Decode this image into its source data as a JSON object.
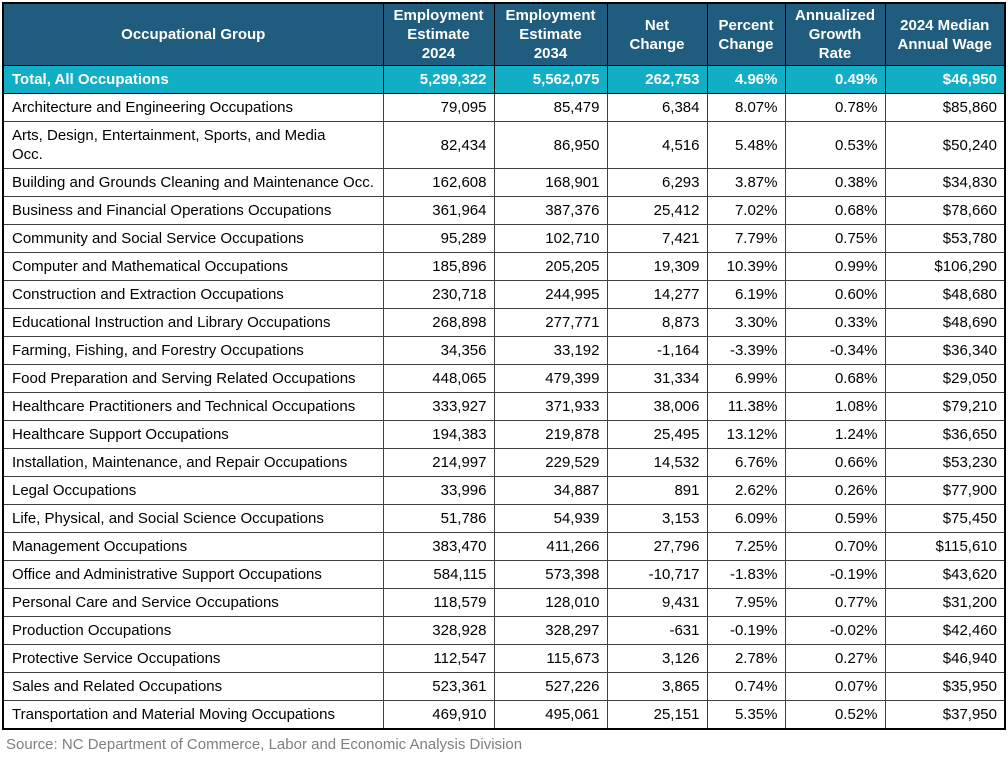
{
  "chart_data": {
    "type": "table",
    "columns": [
      "Occupational Group",
      "Employment\nEstimate\n2024",
      "Employment\nEstimate\n2034",
      "Net\nChange",
      "Percent\nChange",
      "Annualized\nGrowth\nRate",
      "2024 Median\nAnnual Wage"
    ],
    "total_row": {
      "label": "Total, All Occupations",
      "values": [
        "5,299,322",
        "5,562,075",
        "262,753",
        "4.96%",
        "0.49%",
        "$46,950"
      ]
    },
    "rows": [
      {
        "label": "Architecture and Engineering Occupations",
        "values": [
          "79,095",
          "85,479",
          "6,384",
          "8.07%",
          "0.78%",
          "$85,860"
        ]
      },
      {
        "label": "Arts, Design, Entertainment, Sports, and Media\nOcc.",
        "values": [
          "82,434",
          "86,950",
          "4,516",
          "5.48%",
          "0.53%",
          "$50,240"
        ]
      },
      {
        "label": "Building and Grounds Cleaning and Maintenance Occ.",
        "values": [
          "162,608",
          "168,901",
          "6,293",
          "3.87%",
          "0.38%",
          "$34,830"
        ]
      },
      {
        "label": "Business and Financial Operations Occupations",
        "values": [
          "361,964",
          "387,376",
          "25,412",
          "7.02%",
          "0.68%",
          "$78,660"
        ]
      },
      {
        "label": "Community and Social Service Occupations",
        "values": [
          "95,289",
          "102,710",
          "7,421",
          "7.79%",
          "0.75%",
          "$53,780"
        ]
      },
      {
        "label": "Computer and Mathematical Occupations",
        "values": [
          "185,896",
          "205,205",
          "19,309",
          "10.39%",
          "0.99%",
          "$106,290"
        ]
      },
      {
        "label": "Construction and Extraction Occupations",
        "values": [
          "230,718",
          "244,995",
          "14,277",
          "6.19%",
          "0.60%",
          "$48,680"
        ]
      },
      {
        "label": "Educational Instruction and Library Occupations",
        "values": [
          "268,898",
          "277,771",
          "8,873",
          "3.30%",
          "0.33%",
          "$48,690"
        ]
      },
      {
        "label": "Farming, Fishing, and Forestry Occupations",
        "values": [
          "34,356",
          "33,192",
          "-1,164",
          "-3.39%",
          "-0.34%",
          "$36,340"
        ]
      },
      {
        "label": "Food Preparation and Serving Related Occupations",
        "values": [
          "448,065",
          "479,399",
          "31,334",
          "6.99%",
          "0.68%",
          "$29,050"
        ]
      },
      {
        "label": "Healthcare Practitioners and Technical Occupations",
        "values": [
          "333,927",
          "371,933",
          "38,006",
          "11.38%",
          "1.08%",
          "$79,210"
        ]
      },
      {
        "label": "Healthcare Support Occupations",
        "values": [
          "194,383",
          "219,878",
          "25,495",
          "13.12%",
          "1.24%",
          "$36,650"
        ]
      },
      {
        "label": "Installation, Maintenance, and Repair Occupations",
        "values": [
          "214,997",
          "229,529",
          "14,532",
          "6.76%",
          "0.66%",
          "$53,230"
        ]
      },
      {
        "label": "Legal Occupations",
        "values": [
          "33,996",
          "34,887",
          "891",
          "2.62%",
          "0.26%",
          "$77,900"
        ]
      },
      {
        "label": "Life, Physical, and Social Science Occupations",
        "values": [
          "51,786",
          "54,939",
          "3,153",
          "6.09%",
          "0.59%",
          "$75,450"
        ]
      },
      {
        "label": "Management Occupations",
        "values": [
          "383,470",
          "411,266",
          "27,796",
          "7.25%",
          "0.70%",
          "$115,610"
        ]
      },
      {
        "label": "Office and Administrative Support Occupations",
        "values": [
          "584,115",
          "573,398",
          "-10,717",
          "-1.83%",
          "-0.19%",
          "$43,620"
        ]
      },
      {
        "label": "Personal Care and Service Occupations",
        "values": [
          "118,579",
          "128,010",
          "9,431",
          "7.95%",
          "0.77%",
          "$31,200"
        ]
      },
      {
        "label": "Production Occupations",
        "values": [
          "328,928",
          "328,297",
          "-631",
          "-0.19%",
          "-0.02%",
          "$42,460"
        ]
      },
      {
        "label": "Protective Service Occupations",
        "values": [
          "112,547",
          "115,673",
          "3,126",
          "2.78%",
          "0.27%",
          "$46,940"
        ]
      },
      {
        "label": "Sales and Related Occupations",
        "values": [
          "523,361",
          "527,226",
          "3,865",
          "0.74%",
          "0.07%",
          "$35,950"
        ]
      },
      {
        "label": "Transportation and Material Moving Occupations",
        "values": [
          "469,910",
          "495,061",
          "25,151",
          "5.35%",
          "0.52%",
          "$37,950"
        ]
      }
    ]
  },
  "source_note": "Source: NC Department of Commerce, Labor and Economic Analysis Division",
  "colors": {
    "header_bg": "#1F5C7D",
    "total_bg": "#12AEC6",
    "header_text": "#FFFFFF",
    "body_text": "#000000",
    "border_outer": "#000000",
    "border_inner": "#404040",
    "source_text": "#7F7F7F"
  }
}
